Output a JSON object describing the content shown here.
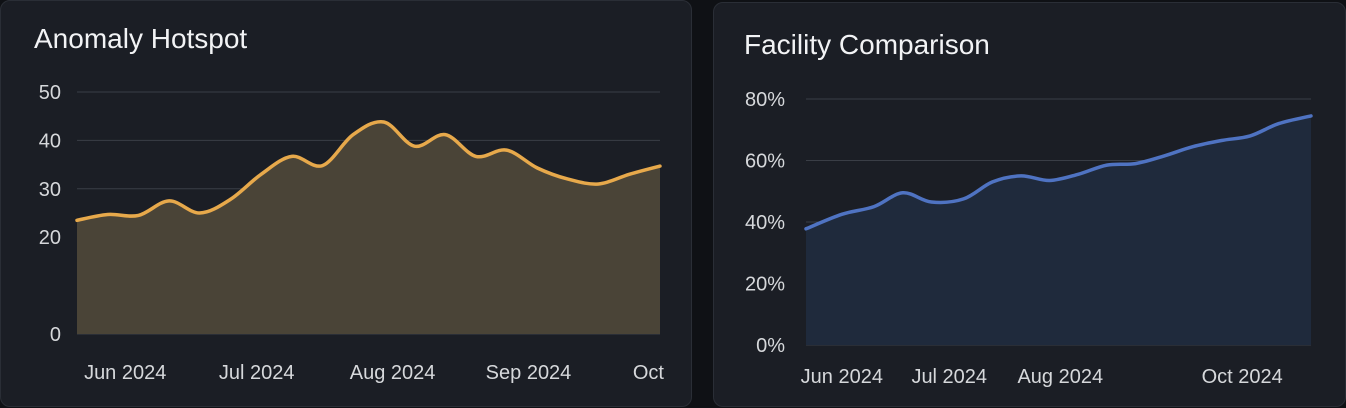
{
  "chart_data": [
    {
      "type": "area",
      "title": "Anomaly Hotspot",
      "xlabel": "",
      "ylabel": "",
      "ylim": [
        0,
        50
      ],
      "y_ticks": [
        {
          "value": 0,
          "label": "0"
        },
        {
          "value": 20,
          "label": "20"
        },
        {
          "value": 30,
          "label": "30"
        },
        {
          "value": 40,
          "label": "40"
        },
        {
          "value": 50,
          "label": "50"
        }
      ],
      "x_ticks": [
        {
          "value": "2024-06-01",
          "label": "Jun 2024"
        },
        {
          "value": "2024-07-01",
          "label": "Jul 2024"
        },
        {
          "value": "2024-08-01",
          "label": "Aug 2024"
        },
        {
          "value": "2024-09-01",
          "label": "Sep 2024"
        },
        {
          "value": "2024-10-01",
          "label": "Oct"
        }
      ],
      "xlim": [
        "2024-05-21",
        "2024-10-01"
      ],
      "grid": true,
      "line_color": "#e7a94b",
      "fill_color": "#4a4437",
      "series": [
        {
          "x": [
            "2024-05-21",
            "2024-05-28",
            "2024-06-04",
            "2024-06-11",
            "2024-06-18",
            "2024-06-25",
            "2024-07-02",
            "2024-07-09",
            "2024-07-16",
            "2024-07-23",
            "2024-07-30",
            "2024-08-06",
            "2024-08-13",
            "2024-08-20",
            "2024-08-27",
            "2024-09-03",
            "2024-09-10",
            "2024-09-17",
            "2024-09-24",
            "2024-10-01"
          ],
          "y": [
            23.5,
            24.7,
            24.5,
            27.5,
            25.0,
            27.8,
            33.0,
            36.7,
            34.8,
            41.2,
            43.8,
            38.8,
            41.2,
            36.7,
            38.0,
            34.3,
            32.0,
            31.0,
            33.0,
            34.7
          ]
        }
      ]
    },
    {
      "type": "area",
      "title": "Facility Comparison",
      "xlabel": "",
      "ylabel": "",
      "ylim": [
        0,
        80
      ],
      "y_ticks": [
        {
          "value": 0,
          "label": "0%"
        },
        {
          "value": 20,
          "label": "20%"
        },
        {
          "value": 40,
          "label": "40%"
        },
        {
          "value": 60,
          "label": "60%"
        },
        {
          "value": 80,
          "label": "80%"
        }
      ],
      "x_ticks": [
        {
          "value": "2024-06-01",
          "label": "Jun 2024"
        },
        {
          "value": "2024-07-01",
          "label": "Jul 2024"
        },
        {
          "value": "2024-08-01",
          "label": "Aug 2024"
        },
        {
          "value": "2024-10-01",
          "label": "Oct 2024"
        }
      ],
      "xlim": [
        "2024-05-22",
        "2024-10-10"
      ],
      "grid": true,
      "line_color": "#4f73c2",
      "fill_color": "#1f2a3c",
      "series": [
        {
          "x": [
            "2024-05-22",
            "2024-06-01",
            "2024-06-10",
            "2024-06-18",
            "2024-06-26",
            "2024-07-05",
            "2024-07-13",
            "2024-07-21",
            "2024-07-29",
            "2024-08-06",
            "2024-08-14",
            "2024-08-22",
            "2024-08-30",
            "2024-09-07",
            "2024-09-15",
            "2024-09-23",
            "2024-10-01",
            "2024-10-10"
          ],
          "y": [
            37.8,
            42.5,
            45.0,
            49.5,
            46.5,
            47.5,
            53.0,
            55.0,
            53.5,
            55.5,
            58.5,
            59.0,
            61.5,
            64.5,
            66.5,
            68.0,
            72.0,
            74.5
          ]
        }
      ]
    }
  ]
}
